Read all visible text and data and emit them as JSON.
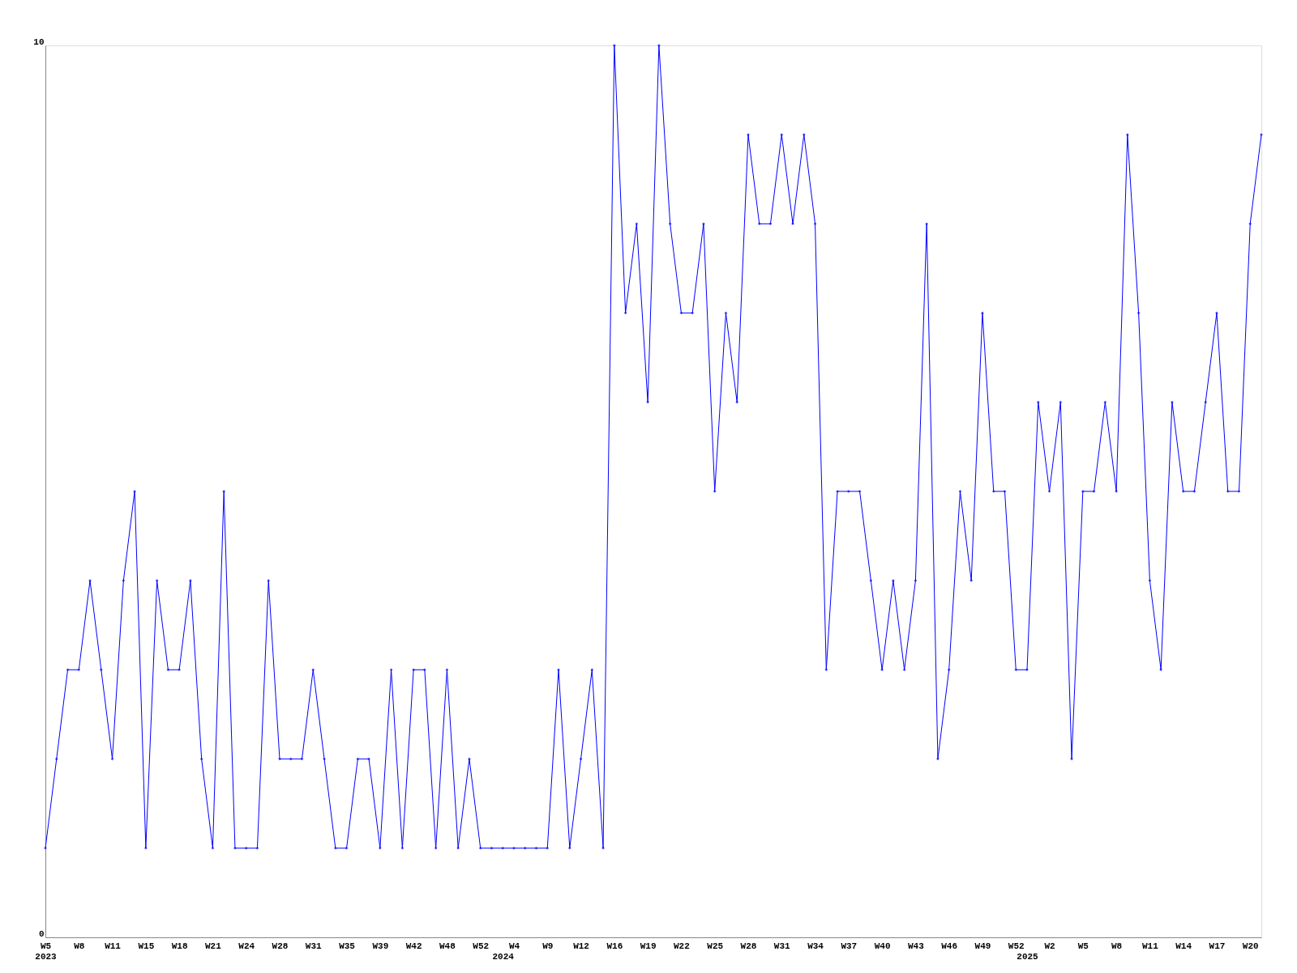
{
  "chart_data": {
    "type": "line",
    "color": "#0000ff",
    "marker": "diamond",
    "line_style": "solid",
    "grid": false,
    "categories": [
      "W5\n2023",
      null,
      null,
      "W8",
      null,
      null,
      "W11",
      null,
      null,
      "W15",
      null,
      null,
      "W18",
      null,
      null,
      "W21",
      null,
      null,
      "W24",
      null,
      null,
      "W28",
      null,
      null,
      "W31",
      null,
      null,
      "W35",
      null,
      null,
      "W39",
      null,
      null,
      "W42",
      null,
      null,
      "W48",
      null,
      null,
      "W52",
      null,
      "\n2024",
      "W4",
      null,
      null,
      "W9",
      null,
      null,
      "W12",
      null,
      null,
      "W16",
      null,
      null,
      "W19",
      null,
      null,
      "W22",
      null,
      null,
      "W25",
      null,
      null,
      "W28",
      null,
      null,
      "W31",
      null,
      null,
      "W34",
      null,
      null,
      "W37",
      null,
      null,
      "W40",
      null,
      null,
      "W43",
      null,
      null,
      "W46",
      null,
      null,
      "W49",
      null,
      null,
      "W52",
      "\n2025",
      null,
      "W2",
      null,
      null,
      "W5",
      null,
      null,
      "W8",
      null,
      null,
      "W11",
      null,
      null,
      "W14",
      null,
      null,
      "W17",
      null,
      null,
      "W20",
      null
    ],
    "values": [
      1,
      2,
      3,
      3,
      4,
      3,
      2,
      4,
      5,
      1,
      4,
      3,
      3,
      4,
      2,
      1,
      5,
      1,
      1,
      1,
      4,
      2,
      2,
      2,
      3,
      2,
      1,
      1,
      2,
      2,
      1,
      3,
      1,
      3,
      3,
      1,
      3,
      1,
      2,
      1,
      1,
      1,
      1,
      1,
      1,
      1,
      3,
      1,
      2,
      3,
      1,
      10,
      7,
      8,
      6,
      10,
      8,
      7,
      7,
      8,
      5,
      7,
      6,
      9,
      8,
      8,
      9,
      8,
      9,
      8,
      3,
      5,
      5,
      5,
      4,
      3,
      4,
      3,
      4,
      8,
      2,
      3,
      5,
      4,
      7,
      5,
      5,
      3,
      3,
      6,
      5,
      6,
      2,
      5,
      5,
      6,
      5,
      9,
      7,
      4,
      3,
      6,
      5,
      5,
      6,
      7,
      5,
      5,
      8,
      9
    ],
    "ylim": [
      0,
      10
    ],
    "yticks": [
      0,
      10
    ]
  }
}
